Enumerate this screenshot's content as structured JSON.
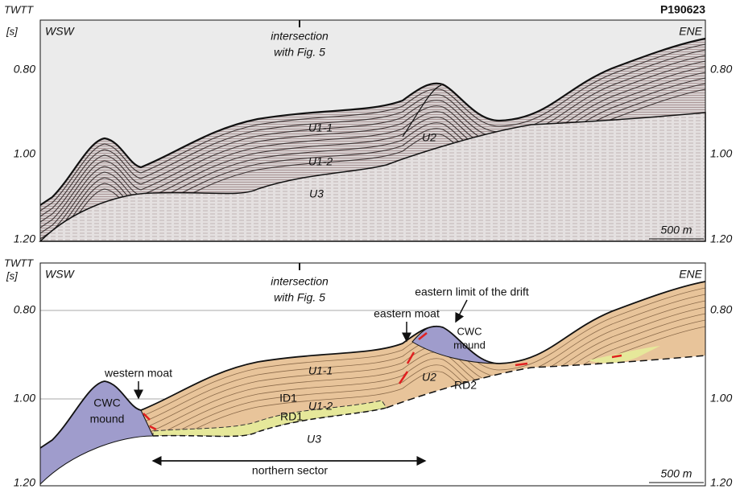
{
  "panels": [
    {
      "profile": "P190623",
      "axis_title": "TWTT",
      "axis_unit": "[s]",
      "west": "WSW",
      "east": "ENE",
      "intersection": [
        "intersection",
        "with Fig. 5"
      ],
      "depth_ticks": [
        "0.80",
        "1.00",
        "1.20"
      ],
      "units": [
        "U1-1",
        "U1-2",
        "U2",
        "U3"
      ],
      "scale_bar": "500 m"
    },
    {
      "axis_title": "TWTT",
      "axis_unit": "[s]",
      "west": "WSW",
      "east": "ENE",
      "intersection": [
        "intersection",
        "with Fig. 5"
      ],
      "depth_ticks": [
        "0.80",
        "1.00",
        "1.20"
      ],
      "annotations": [
        "eastern limit of the drift",
        "eastern moat",
        "western moat"
      ],
      "mounds": [
        [
          "CWC",
          "mound"
        ],
        [
          "CWC",
          "mound"
        ]
      ],
      "units": [
        "U1-1",
        "U1-2",
        "U2",
        "U3"
      ],
      "surfaces": [
        "ID1",
        "RD1",
        "RD2"
      ],
      "sector": "northern sector",
      "scale_bar": "500 m"
    }
  ]
}
